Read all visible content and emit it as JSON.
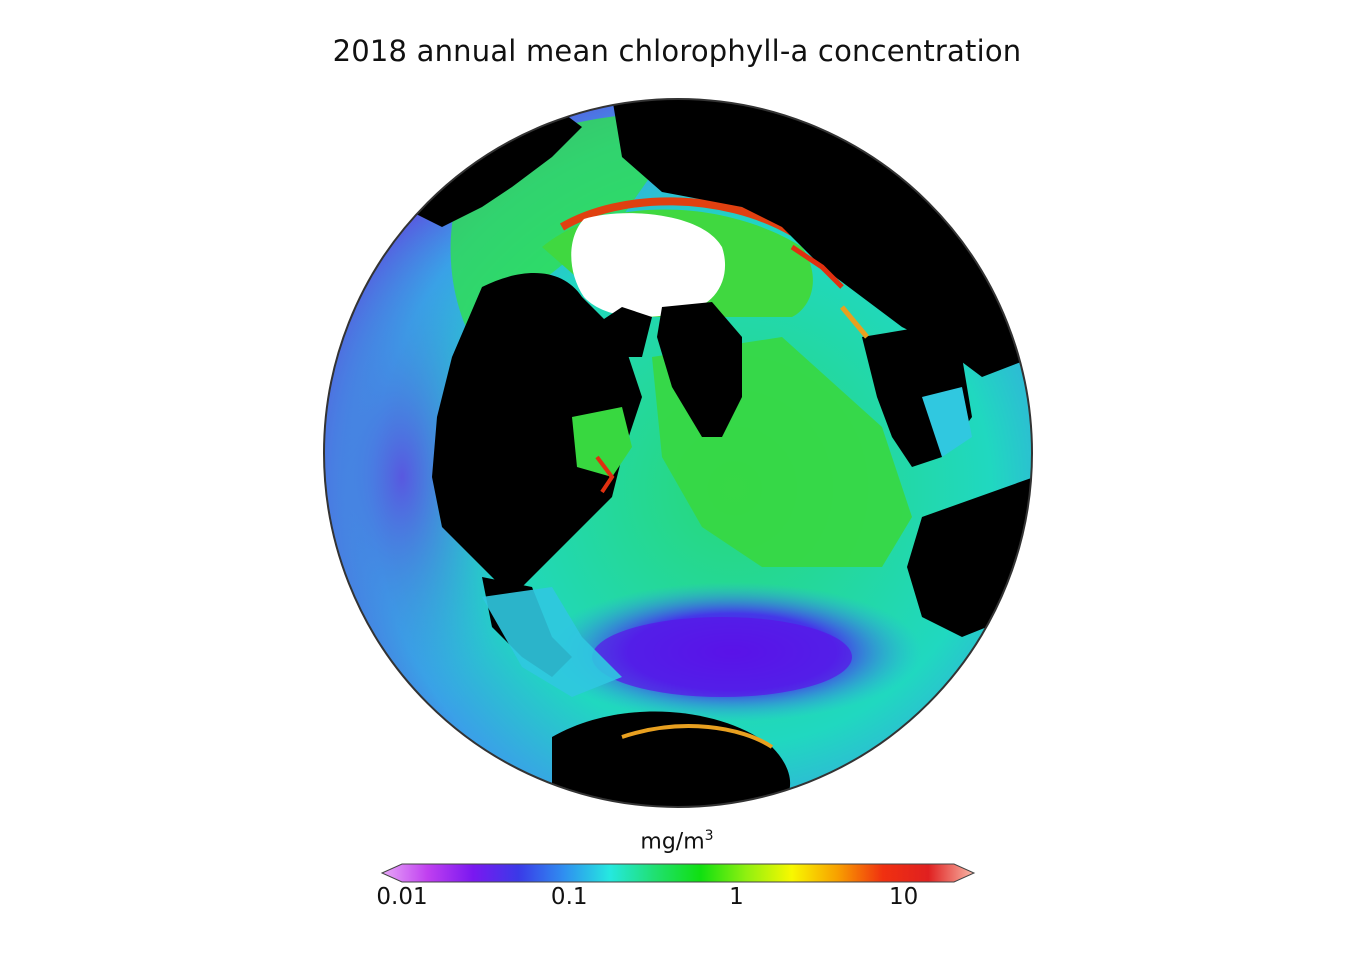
{
  "title": "2018 annual mean chlorophyll-a concentration",
  "colorbar": {
    "label_base": "mg/m",
    "label_exp": "3",
    "scale": "log",
    "range": [
      0.01,
      20
    ],
    "ticks": [
      {
        "label": "0.01",
        "value": 0.01
      },
      {
        "label": "0.1",
        "value": 0.1
      },
      {
        "label": "1",
        "value": 1
      },
      {
        "label": "10",
        "value": 10
      }
    ],
    "colors": [
      "#e8a8f8",
      "#c040f0",
      "#7a18f0",
      "#3a3ae8",
      "#2f8ff0",
      "#25e8e0",
      "#20e070",
      "#10e010",
      "#90f010",
      "#f8f800",
      "#f8a000",
      "#f03010",
      "#e02020",
      "#f8b8a8"
    ]
  },
  "map": {
    "projection": "orthographic",
    "colors": {
      "land": "#000000",
      "ice": "#ffffff",
      "outline": "#333333"
    }
  }
}
